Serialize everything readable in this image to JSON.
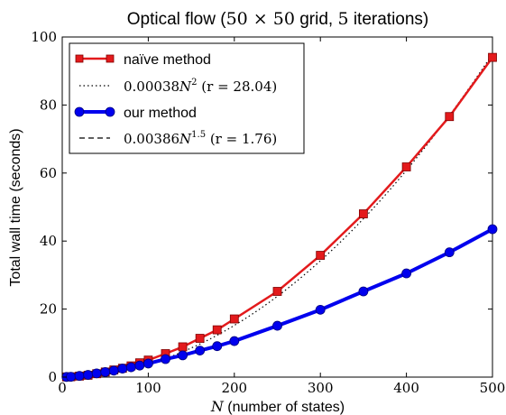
{
  "chart_data": {
    "type": "line",
    "title": {
      "prefix": "Optical flow (",
      "grid_math": "50 × 50",
      "middle": " grid, ",
      "iter_math": "5",
      "suffix": " iterations)"
    },
    "xlabel": {
      "var": "N",
      "rest": " (number of states)"
    },
    "ylabel": "Total wall time (seconds)",
    "xlim": [
      0,
      500
    ],
    "ylim": [
      0,
      100
    ],
    "xticks": [
      "0",
      "100",
      "200",
      "300",
      "400",
      "500"
    ],
    "yticks": [
      "0",
      "20",
      "40",
      "60",
      "80",
      "100"
    ],
    "grid": false,
    "legend_position": "top-left",
    "series": [
      {
        "name": "naïve method",
        "style": "red-square",
        "color": "#e31a1c",
        "x": [
          5,
          10,
          20,
          30,
          40,
          50,
          60,
          70,
          80,
          90,
          100,
          120,
          140,
          160,
          180,
          200,
          250,
          300,
          350,
          400,
          450,
          500
        ],
        "y": [
          0.05,
          0.1,
          0.3,
          0.55,
          1.0,
          1.5,
          2.1,
          2.6,
          3.3,
          4.2,
          5.0,
          6.9,
          8.9,
          11.4,
          13.9,
          17.1,
          25.2,
          35.8,
          48.0,
          61.8,
          76.6,
          94.0
        ]
      },
      {
        "name": "our method",
        "style": "blue-circle",
        "color": "#0000ee",
        "x": [
          5,
          10,
          20,
          30,
          40,
          50,
          60,
          70,
          80,
          90,
          100,
          120,
          140,
          160,
          180,
          200,
          250,
          300,
          350,
          400,
          450,
          500
        ],
        "y": [
          0.05,
          0.1,
          0.35,
          0.65,
          1.1,
          1.5,
          1.9,
          2.5,
          2.9,
          3.4,
          4.0,
          5.3,
          6.4,
          7.8,
          9.1,
          10.6,
          15.1,
          19.8,
          25.2,
          30.5,
          36.7,
          43.5
        ]
      }
    ],
    "fits": [
      {
        "coef": 0.00038,
        "exp": 2,
        "label_coef": "0.00038",
        "label_var": "N",
        "label_exp": "2",
        "label_r": " (r = 28.04)",
        "dash": "dotted"
      },
      {
        "coef": 0.00386,
        "exp": 1.5,
        "label_coef": "0.00386",
        "label_var": "N",
        "label_exp": "1.5",
        "label_r": " (r = 1.76)",
        "dash": "dashed"
      }
    ]
  }
}
